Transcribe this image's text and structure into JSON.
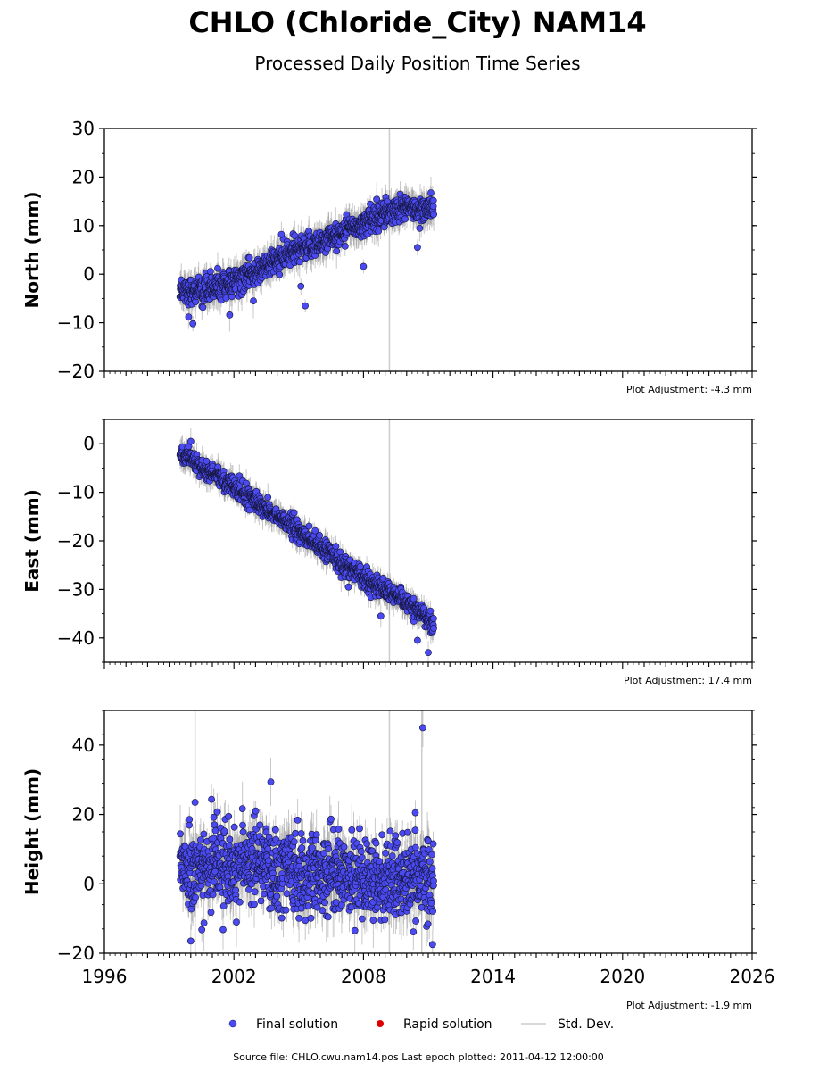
{
  "figure": {
    "title": "CHLO (Chloride_City) NAM14",
    "subtitle": "Processed Daily Position Time Series",
    "footer": "Source file: CHLO.cwu.nam14.pos  Last epoch plotted: 2011-04-12 12:00:00"
  },
  "legend": {
    "final_label": "Final solution",
    "rapid_label": "Rapid solution",
    "std_label": "Std. Dev."
  },
  "colors": {
    "final": "#4a4af0",
    "rapid": "#dd0000",
    "errorbar": "#9a9a9a",
    "event_line": "#cccccc"
  },
  "chart_data": [
    {
      "type": "scatter",
      "ylabel": "North (mm)",
      "adjustment": "Plot Adjustment: -4.3 mm",
      "xlim": [
        1996,
        2026
      ],
      "ylim": [
        -20,
        30
      ],
      "yticks": [
        -20,
        -10,
        0,
        10,
        20,
        30
      ],
      "ytick_labels": [
        "−20",
        "−10",
        "0",
        "10",
        "20",
        "30"
      ],
      "event_lines": [
        2009.2
      ],
      "trend": {
        "start": [
          1999.5,
          -3.5
        ],
        "end": [
          2011.25,
          14.0
        ]
      },
      "scatter_sd": 1.6,
      "errorbar_sd": 3.0,
      "series": [
        {
          "name": "Final solution",
          "x": [
            1999.5,
            2000.0,
            2000.5,
            2001.0,
            2001.5,
            2002.0,
            2002.5,
            2003.0,
            2003.5,
            2004.0,
            2004.5,
            2005.0,
            2005.5,
            2006.0,
            2006.5,
            2007.0,
            2007.5,
            2008.0,
            2008.5,
            2009.0,
            2009.5,
            2010.0,
            2010.5,
            2011.0,
            2011.25
          ],
          "y": [
            -3.0,
            -3.5,
            -3.2,
            -2.8,
            -2.3,
            -1.6,
            -0.8,
            0.4,
            1.6,
            2.9,
            3.9,
            5.0,
            5.8,
            6.6,
            7.6,
            8.7,
            9.6,
            10.6,
            11.6,
            12.5,
            13.0,
            13.5,
            13.5,
            13.6,
            14.0
          ]
        }
      ],
      "outliers": [
        [
          2000.1,
          -10.2
        ],
        [
          1999.9,
          -8.8
        ],
        [
          2001.8,
          -8.4
        ],
        [
          2002.9,
          -5.5
        ],
        [
          2004.2,
          8.2
        ],
        [
          2005.1,
          -2.5
        ],
        [
          2005.3,
          -6.5
        ],
        [
          2008.0,
          1.6
        ],
        [
          2010.5,
          5.5
        ],
        [
          2009.1,
          15.0
        ]
      ]
    },
    {
      "type": "scatter",
      "ylabel": "East (mm)",
      "adjustment": "Plot Adjustment: 17.4 mm",
      "xlim": [
        1996,
        2026
      ],
      "ylim": [
        -45,
        5
      ],
      "yticks": [
        -40,
        -30,
        -20,
        -10,
        0
      ],
      "ytick_labels": [
        "−40",
        "−30",
        "−20",
        "−10",
        "0"
      ],
      "event_lines": [
        2009.2
      ],
      "trend": {
        "start": [
          1999.5,
          -1.5
        ],
        "end": [
          2011.25,
          -37.0
        ]
      },
      "scatter_sd": 1.2,
      "errorbar_sd": 2.5,
      "series": [
        {
          "name": "Final solution",
          "x": [
            1999.5,
            2000.0,
            2000.5,
            2001.0,
            2001.5,
            2002.0,
            2002.5,
            2003.0,
            2003.5,
            2004.0,
            2004.5,
            2005.0,
            2005.5,
            2006.0,
            2006.5,
            2007.0,
            2007.5,
            2008.0,
            2008.5,
            2009.0,
            2009.5,
            2010.0,
            2010.5,
            2011.0,
            2011.25
          ],
          "y": [
            -2.0,
            -3.5,
            -5.0,
            -6.0,
            -7.5,
            -9.0,
            -10.5,
            -12.0,
            -13.5,
            -15.0,
            -16.5,
            -18.0,
            -19.8,
            -21.5,
            -23.0,
            -24.5,
            -26.0,
            -27.5,
            -29.0,
            -30.2,
            -31.5,
            -33.0,
            -34.5,
            -36.0,
            -37.0
          ]
        }
      ],
      "outliers": [
        [
          2011.0,
          -43.0
        ],
        [
          2010.5,
          -40.5
        ],
        [
          2008.8,
          -35.5
        ],
        [
          2000.0,
          0.5
        ],
        [
          2007.3,
          -29.5
        ]
      ]
    },
    {
      "type": "scatter",
      "ylabel": "Height (mm)",
      "adjustment": "Plot Adjustment: -1.9 mm",
      "xlim": [
        1996,
        2026
      ],
      "ylim": [
        -20,
        50
      ],
      "yticks": [
        -20,
        0,
        20,
        40
      ],
      "ytick_labels": [
        "−20",
        "0",
        "20",
        "40"
      ],
      "xticks": [
        1996,
        2002,
        2008,
        2014,
        2020,
        2026
      ],
      "event_lines": [
        2000.2,
        2009.2,
        2010.7
      ],
      "trend": {
        "start": [
          1999.5,
          4.0
        ],
        "end": [
          2011.25,
          2.0
        ]
      },
      "scatter_sd": 7.0,
      "errorbar_sd": 7.0,
      "series": [
        {
          "name": "Final solution",
          "x": [
            1999.5,
            2000.0,
            2000.5,
            2001.0,
            2001.5,
            2002.0,
            2002.5,
            2003.0,
            2003.5,
            2004.0,
            2004.5,
            2005.0,
            2005.5,
            2006.0,
            2006.5,
            2007.0,
            2007.5,
            2008.0,
            2008.5,
            2009.0,
            2009.5,
            2010.0,
            2010.5,
            2011.0,
            2011.25
          ],
          "y": [
            5,
            3,
            4,
            5,
            6,
            4,
            6,
            7,
            5,
            4,
            5,
            2,
            1,
            3,
            4,
            3,
            2,
            2,
            1,
            1,
            2,
            1,
            2,
            0,
            1
          ]
        }
      ],
      "outliers": [
        [
          2010.75,
          45.0
        ],
        [
          2000.2,
          23.5
        ],
        [
          2010.4,
          20.5
        ],
        [
          2000.0,
          -16.5
        ],
        [
          2011.2,
          -17.5
        ]
      ]
    }
  ]
}
